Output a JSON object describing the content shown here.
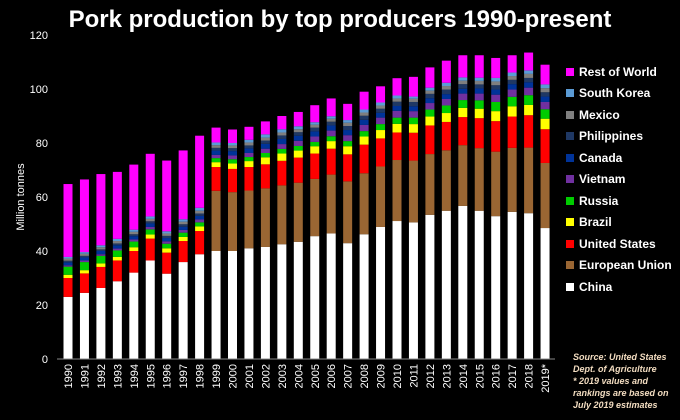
{
  "chart_data": {
    "type": "bar",
    "stacked": true,
    "title": "Pork production by top producers 1990-present",
    "xlabel": "",
    "ylabel": "Million tonnes",
    "ylim": [
      0,
      120
    ],
    "yticks": [
      0,
      20,
      40,
      60,
      80,
      100,
      120
    ],
    "grid": false,
    "legend_position": "right",
    "categories": [
      "1990",
      "1991",
      "1992",
      "1993",
      "1994",
      "1995",
      "1996",
      "1997",
      "1998",
      "1999",
      "2000",
      "2001",
      "2002",
      "2003",
      "2004",
      "2005",
      "2006",
      "2007",
      "2008",
      "2009",
      "2010",
      "2011",
      "2012",
      "2013",
      "2014",
      "2015",
      "2016",
      "2017",
      "2018",
      "2019*"
    ],
    "series": [
      {
        "name": "China",
        "color": "#ffffff",
        "values": [
          23,
          24.5,
          26.3,
          28.8,
          32,
          36.5,
          31.6,
          35.9,
          38.8,
          40,
          40,
          41,
          41.5,
          42.5,
          43.4,
          45.5,
          46.5,
          42.9,
          46.2,
          48.9,
          51.1,
          50.6,
          53.4,
          54.9,
          56.7,
          54.9,
          52.9,
          54.5,
          54,
          48.5
        ]
      },
      {
        "name": "European Union",
        "color": "#9a6633",
        "values": [
          0,
          0,
          0,
          0,
          0,
          0,
          0,
          0,
          0,
          22.3,
          21.8,
          21.4,
          21.7,
          21.8,
          21.9,
          21.2,
          21.8,
          22.9,
          22.6,
          22.4,
          22.6,
          22.9,
          22.5,
          22.4,
          22.5,
          23.2,
          23.9,
          23.7,
          24.3,
          24.1
        ]
      },
      {
        "name": "United States",
        "color": "#ff0000",
        "values": [
          7,
          7.2,
          7.8,
          7.7,
          8,
          8.1,
          7.8,
          7.8,
          8.6,
          8.8,
          8.6,
          8.7,
          8.9,
          9.1,
          9.3,
          9.4,
          9.6,
          10,
          10.6,
          10.4,
          10.2,
          10.3,
          10.6,
          10.5,
          10.4,
          11.1,
          11.3,
          11.6,
          12,
          12.5
        ]
      },
      {
        "name": "Brazil",
        "color": "#ffff00",
        "values": [
          1.2,
          1.2,
          1.3,
          1.3,
          1.4,
          1.5,
          1.6,
          1.5,
          1.7,
          1.8,
          2,
          2.2,
          2.6,
          2.7,
          2.6,
          2.7,
          2.8,
          3,
          3,
          3.1,
          3.2,
          3.2,
          3.3,
          3.3,
          3.4,
          3.5,
          3.7,
          3.8,
          3.8,
          3.9
        ]
      },
      {
        "name": "Russia",
        "color": "#00cc00",
        "values": [
          3,
          3,
          2.8,
          2.4,
          2.1,
          1.9,
          1.7,
          1.6,
          1.5,
          1.5,
          1.6,
          1.5,
          1.6,
          1.7,
          1.7,
          1.6,
          1.8,
          1.9,
          2,
          2.2,
          2.3,
          2.4,
          2.6,
          2.8,
          2.9,
          3.1,
          3.4,
          3.5,
          3.6,
          3.5
        ]
      },
      {
        "name": "Vietnam",
        "color": "#7030a0",
        "values": [
          0.5,
          0.6,
          0.6,
          0.7,
          0.8,
          0.9,
          0.9,
          1,
          1.1,
          1.2,
          1.4,
          1.5,
          1.6,
          1.8,
          1.9,
          2,
          2.1,
          2.2,
          2.3,
          2.4,
          2.5,
          2.4,
          2.4,
          2.4,
          2.4,
          2.5,
          2.7,
          2.7,
          2.8,
          2.7
        ]
      },
      {
        "name": "Canada",
        "color": "#003399",
        "values": [
          1.1,
          1.1,
          1.2,
          1.2,
          1.2,
          1.3,
          1.2,
          1.2,
          1.3,
          1.6,
          1.6,
          1.7,
          1.8,
          1.9,
          1.9,
          1.9,
          1.9,
          1.9,
          1.9,
          1.8,
          1.8,
          1.8,
          1.8,
          1.8,
          1.8,
          1.9,
          1.9,
          2,
          2,
          2
        ]
      },
      {
        "name": "Philippines",
        "color": "#1f3864",
        "values": [
          0.6,
          0.6,
          0.6,
          0.7,
          0.7,
          0.8,
          0.8,
          0.9,
          0.9,
          1,
          1.1,
          1.1,
          1.2,
          1.3,
          1.3,
          1.4,
          1.4,
          1.5,
          1.5,
          1.5,
          1.6,
          1.6,
          1.6,
          1.7,
          1.7,
          1.5,
          1.6,
          1.6,
          1.6,
          1.6
        ]
      },
      {
        "name": "Mexico",
        "color": "#7f7f7f",
        "values": [
          0.8,
          0.8,
          0.8,
          0.9,
          0.9,
          0.9,
          0.9,
          0.95,
          1,
          1,
          1,
          1.1,
          1.1,
          1.1,
          1.1,
          1.1,
          1.1,
          1.2,
          1.2,
          1.2,
          1.2,
          1.2,
          1.2,
          1.3,
          1.3,
          1.3,
          1.4,
          1.4,
          1.5,
          1.5
        ]
      },
      {
        "name": "South Korea",
        "color": "#5b9bd5",
        "values": [
          0.6,
          0.6,
          0.7,
          0.8,
          0.8,
          0.9,
          0.8,
          0.9,
          1.1,
          1,
          0.9,
          1,
          1.2,
          1.2,
          1.1,
          0.9,
          0.9,
          1,
          1.1,
          1.1,
          1.1,
          0.8,
          1.1,
          1.2,
          1.2,
          1.2,
          1.3,
          1.3,
          1.3,
          1.4
        ]
      },
      {
        "name": "Rest of World",
        "color": "#ff00ff",
        "values": [
          27,
          26.9,
          26.4,
          24.8,
          24.1,
          23.2,
          26.2,
          25.5,
          26.7,
          5.5,
          5,
          4.8,
          4.8,
          4.9,
          5.3,
          6.3,
          6.6,
          6,
          6.6,
          6,
          6.4,
          7.3,
          7.5,
          8.2,
          8.2,
          8.3,
          7.4,
          6.4,
          6.6,
          7.3
        ]
      }
    ],
    "annotations": {
      "source": [
        "Source: United States",
        "Dept. of Agriculture",
        "* 2019 values and",
        "rankings are based on",
        "July 2019 estimates"
      ]
    }
  }
}
